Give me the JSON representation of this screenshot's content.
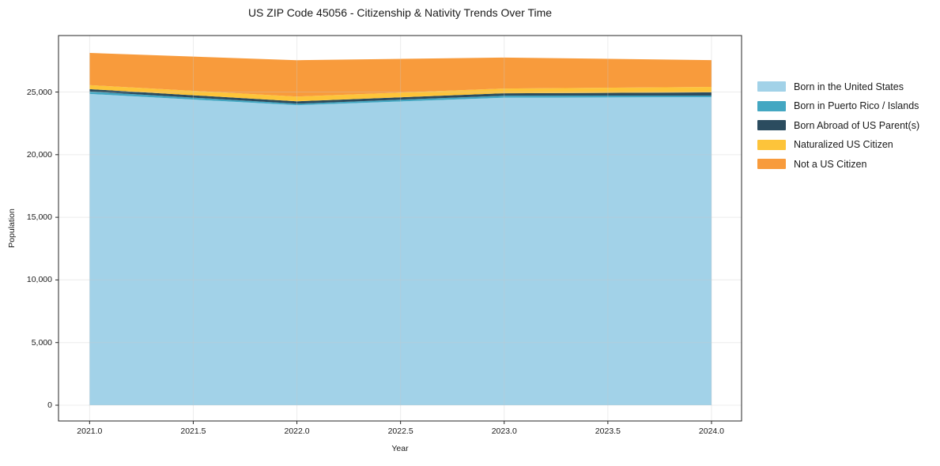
{
  "chart_data": {
    "type": "area",
    "stacked": true,
    "title": "US ZIP Code 45056 - Citizenship & Nativity Trends Over Time",
    "xlabel": "Year",
    "ylabel": "Population",
    "x": [
      2021,
      2022,
      2023,
      2024
    ],
    "series": [
      {
        "name": "Born in the United States",
        "color": "#A2D2E8",
        "values": [
          24850,
          23950,
          24550,
          24590
        ]
      },
      {
        "name": "Born in Puerto Rico / Islands",
        "color": "#43A7C2",
        "values": [
          190,
          120,
          160,
          130
        ]
      },
      {
        "name": "Born Abroad of US Parent(s)",
        "color": "#2B4C5F",
        "values": [
          190,
          190,
          190,
          250
        ]
      },
      {
        "name": "Naturalized US Citizen",
        "color": "#FDC43A",
        "values": [
          320,
          380,
          380,
          440
        ]
      },
      {
        "name": "Not a US Citizen",
        "color": "#F89B3C",
        "values": [
          2570,
          2900,
          2470,
          2140
        ]
      }
    ],
    "xticks": {
      "values": [
        2021.0,
        2021.5,
        2022.0,
        2022.5,
        2023.0,
        2023.5,
        2024.0
      ],
      "labels": [
        "2021.0",
        "2021.5",
        "2022.0",
        "2022.5",
        "2023.0",
        "2023.5",
        "2024.0"
      ]
    },
    "yticks": {
      "values": [
        0,
        5000,
        10000,
        15000,
        20000,
        25000
      ],
      "labels": [
        "0",
        "5,000",
        "10,000",
        "15,000",
        "20,000",
        "25,000"
      ]
    },
    "xlim": [
      2020.85,
      2024.145
    ],
    "ylim": [
      -1260,
      29510
    ],
    "grid": true,
    "legend_position": "right"
  },
  "colors": {
    "background": "#ffffff",
    "grid": "#c9c9c9",
    "spine": "#262626",
    "tick": "#262626",
    "text": "#1a1a1a"
  }
}
